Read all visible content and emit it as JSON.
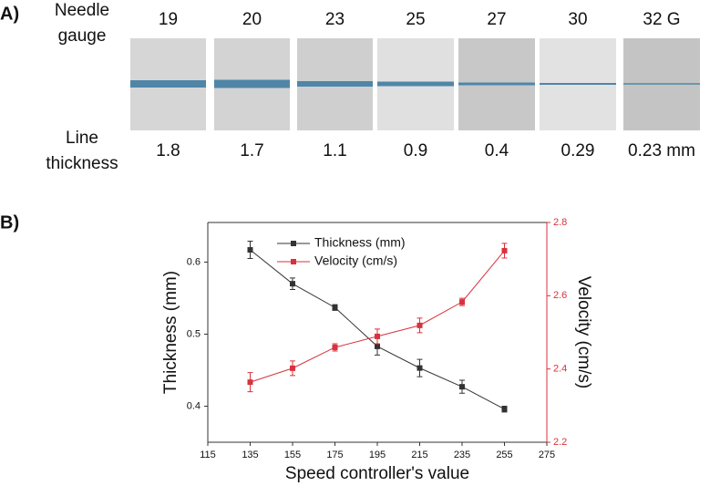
{
  "panel_a": {
    "label": "A)",
    "gauge_header": [
      "Needle",
      "gauge"
    ],
    "gauges": [
      "19",
      "20",
      "23",
      "25",
      "27",
      "30",
      "32 G"
    ],
    "thickness_header": [
      "Line",
      "thickness"
    ],
    "thicknesses": [
      "1.8",
      "1.7",
      "1.1",
      "0.9",
      "0.4",
      "0.29",
      "0.23 mm"
    ]
  },
  "panel_b": {
    "label": "B)"
  },
  "chart_data": {
    "type": "line",
    "xlabel": "Speed controller's value",
    "ylabel": "Thickness (mm)",
    "y2label": "Velocity (cm/s)",
    "x": [
      135,
      155,
      175,
      195,
      215,
      235,
      255
    ],
    "xlim": [
      115,
      275
    ],
    "xticks": [
      115,
      135,
      155,
      175,
      195,
      215,
      235,
      255,
      275
    ],
    "ylim": [
      0.35,
      0.655
    ],
    "yticks": [
      0.4,
      0.5,
      0.6
    ],
    "y2lim": [
      2.2,
      2.8
    ],
    "y2ticks": [
      2.2,
      2.4,
      2.6,
      2.8
    ],
    "legend": "upper center",
    "series": [
      {
        "name": "Thickness (mm)",
        "color": "#333333",
        "values": [
          0.617,
          0.57,
          0.537,
          0.483,
          0.453,
          0.427,
          0.396
        ],
        "errors": [
          0.012,
          0.008,
          0.004,
          0.012,
          0.012,
          0.009,
          0.004
        ]
      },
      {
        "name": "Velocity (cm/s)",
        "color": "#d8323c",
        "axis": "y2",
        "values": [
          2.364,
          2.402,
          2.459,
          2.489,
          2.519,
          2.583,
          2.723
        ],
        "errors": [
          0.026,
          0.02,
          0.01,
          0.02,
          0.02,
          0.01,
          0.02
        ]
      }
    ]
  }
}
